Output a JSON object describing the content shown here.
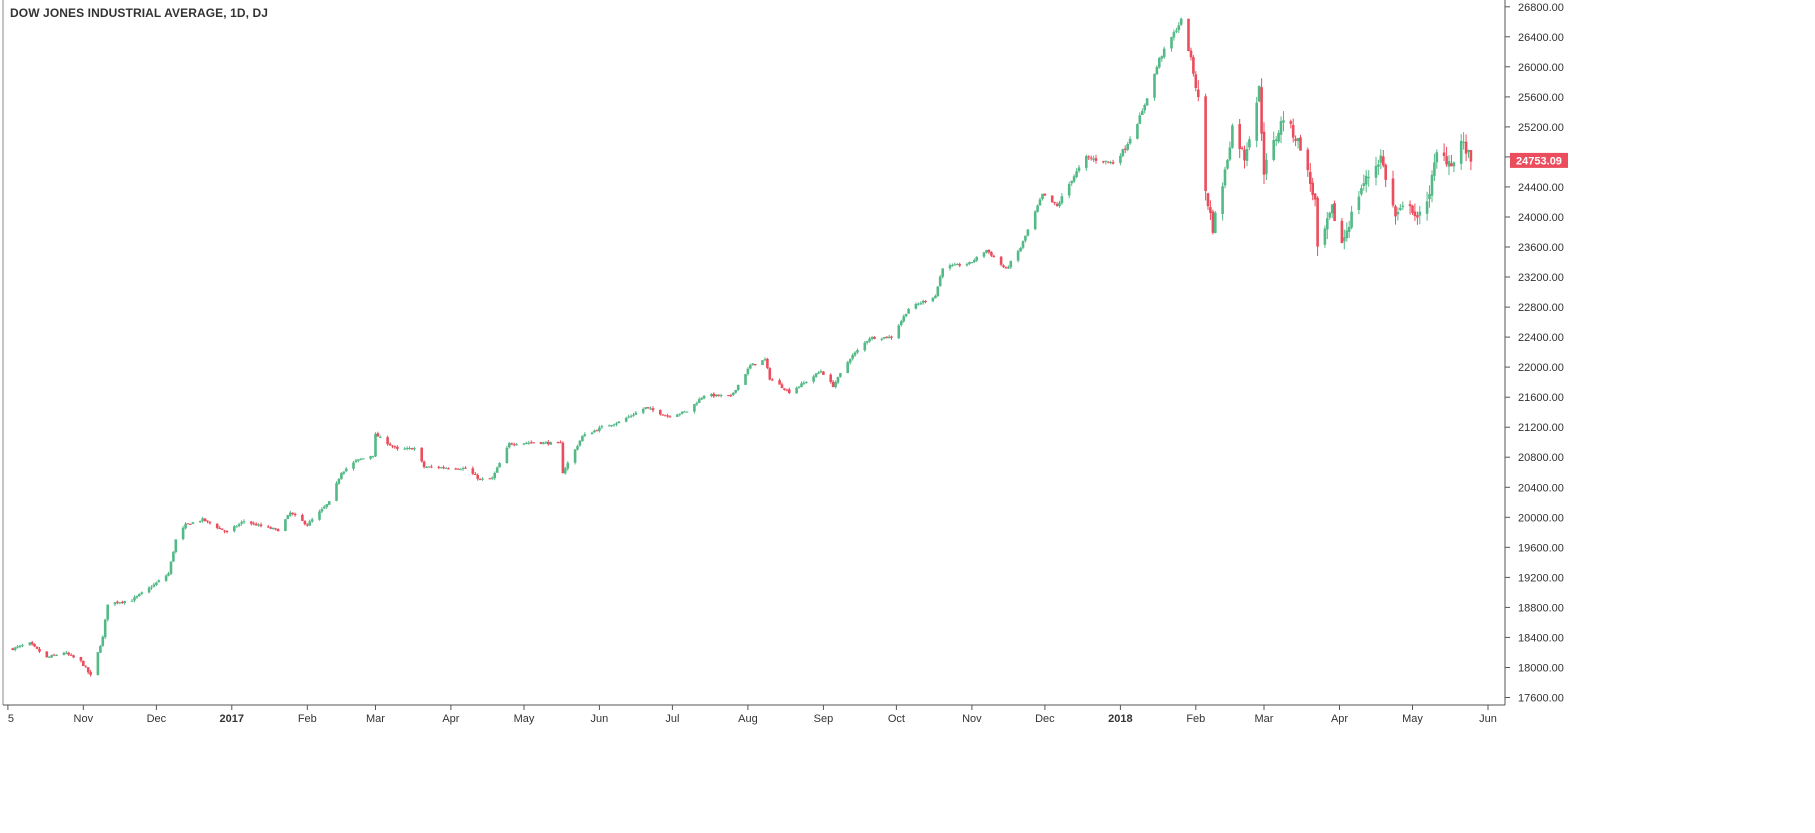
{
  "chart_data": {
    "type": "candlestick",
    "title": "DOW JONES INDUSTRIAL AVERAGE, 1D, DJ",
    "ylim": [
      17500,
      26850
    ],
    "y_ticks": [
      17600,
      18000,
      18400,
      18800,
      19200,
      19600,
      20000,
      20400,
      20800,
      21200,
      21600,
      22000,
      22400,
      22800,
      23200,
      23600,
      24000,
      24400,
      24800,
      25200,
      25600,
      26000,
      26400,
      26800
    ],
    "y_tick_labels": [
      "17600.00",
      "18000.00",
      "18400.00",
      "18800.00",
      "19200.00",
      "19600.00",
      "20000.00",
      "20400.00",
      "20800.00",
      "21200.00",
      "21600.00",
      "22000.00",
      "22400.00",
      "22800.00",
      "23200.00",
      "23600.00",
      "24000.00",
      "24400.00",
      "24800.00",
      "25200.00",
      "25600.00",
      "26000.00",
      "26400.00",
      "26800.00"
    ],
    "x_range": [
      "2016-09-29",
      "2018-06-08"
    ],
    "x_ticks": [
      {
        "date": "2016-10-01",
        "label": "5",
        "bold": false
      },
      {
        "date": "2016-11-01",
        "label": "Nov",
        "bold": false
      },
      {
        "date": "2016-12-01",
        "label": "Dec",
        "bold": false
      },
      {
        "date": "2017-01-01",
        "label": "2017",
        "bold": true
      },
      {
        "date": "2017-02-01",
        "label": "Feb",
        "bold": false
      },
      {
        "date": "2017-03-01",
        "label": "Mar",
        "bold": false
      },
      {
        "date": "2017-04-01",
        "label": "Apr",
        "bold": false
      },
      {
        "date": "2017-05-01",
        "label": "May",
        "bold": false
      },
      {
        "date": "2017-06-01",
        "label": "Jun",
        "bold": false
      },
      {
        "date": "2017-07-01",
        "label": "Jul",
        "bold": false
      },
      {
        "date": "2017-08-01",
        "label": "Aug",
        "bold": false
      },
      {
        "date": "2017-09-01",
        "label": "Sep",
        "bold": false
      },
      {
        "date": "2017-10-01",
        "label": "Oct",
        "bold": false
      },
      {
        "date": "2017-11-01",
        "label": "Nov",
        "bold": false
      },
      {
        "date": "2017-12-01",
        "label": "Dec",
        "bold": false
      },
      {
        "date": "2018-01-01",
        "label": "2018",
        "bold": true
      },
      {
        "date": "2018-02-01",
        "label": "Feb",
        "bold": false
      },
      {
        "date": "2018-03-01",
        "label": "Mar",
        "bold": false
      },
      {
        "date": "2018-04-01",
        "label": "Apr",
        "bold": false
      },
      {
        "date": "2018-05-01",
        "label": "May",
        "bold": false
      },
      {
        "date": "2018-06-01",
        "label": "Jun",
        "bold": false
      }
    ],
    "last_price": 24753.09,
    "last_price_label": "24753.09",
    "colors": {
      "up": "#53b987",
      "down": "#eb4d5c",
      "axis": "#555555",
      "text": "#333333"
    },
    "grid": false,
    "close_points": [
      [
        "2016-10-03",
        18250
      ],
      [
        "2016-10-10",
        18320
      ],
      [
        "2016-10-17",
        18130
      ],
      [
        "2016-10-24",
        18200
      ],
      [
        "2016-10-31",
        18080
      ],
      [
        "2016-11-04",
        17890
      ],
      [
        "2016-11-09",
        18400
      ],
      [
        "2016-11-11",
        18850
      ],
      [
        "2016-11-21",
        18900
      ],
      [
        "2016-11-30",
        19100
      ],
      [
        "2016-12-06",
        19250
      ],
      [
        "2016-12-09",
        19700
      ],
      [
        "2016-12-13",
        19900
      ],
      [
        "2016-12-20",
        19970
      ],
      [
        "2016-12-30",
        19800
      ],
      [
        "2017-01-06",
        19950
      ],
      [
        "2017-01-13",
        19880
      ],
      [
        "2017-01-20",
        19830
      ],
      [
        "2017-01-25",
        20060
      ],
      [
        "2017-02-01",
        19900
      ],
      [
        "2017-02-10",
        20200
      ],
      [
        "2017-02-15",
        20600
      ],
      [
        "2017-02-21",
        20750
      ],
      [
        "2017-02-28",
        20830
      ],
      [
        "2017-03-01",
        21100
      ],
      [
        "2017-03-10",
        20900
      ],
      [
        "2017-03-17",
        20920
      ],
      [
        "2017-03-21",
        20670
      ],
      [
        "2017-03-31",
        20660
      ],
      [
        "2017-04-07",
        20650
      ],
      [
        "2017-04-13",
        20500
      ],
      [
        "2017-04-18",
        20520
      ],
      [
        "2017-04-25",
        20980
      ],
      [
        "2017-05-05",
        21000
      ],
      [
        "2017-05-16",
        20980
      ],
      [
        "2017-05-17",
        20600
      ],
      [
        "2017-05-25",
        21080
      ],
      [
        "2017-06-02",
        21200
      ],
      [
        "2017-06-09",
        21270
      ],
      [
        "2017-06-20",
        21460
      ],
      [
        "2017-06-29",
        21350
      ],
      [
        "2017-07-07",
        21410
      ],
      [
        "2017-07-14",
        21630
      ],
      [
        "2017-07-25",
        21610
      ],
      [
        "2017-08-02",
        22020
      ],
      [
        "2017-08-08",
        22100
      ],
      [
        "2017-08-10",
        21850
      ],
      [
        "2017-08-18",
        21670
      ],
      [
        "2017-08-25",
        21810
      ],
      [
        "2017-08-31",
        21950
      ],
      [
        "2017-09-05",
        21750
      ],
      [
        "2017-09-12",
        22120
      ],
      [
        "2017-09-20",
        22390
      ],
      [
        "2017-09-29",
        22400
      ],
      [
        "2017-10-06",
        22780
      ],
      [
        "2017-10-17",
        22950
      ],
      [
        "2017-10-20",
        23330
      ],
      [
        "2017-10-31",
        23380
      ],
      [
        "2017-11-07",
        23560
      ],
      [
        "2017-11-15",
        23300
      ],
      [
        "2017-11-21",
        23590
      ],
      [
        "2017-11-30",
        24300
      ],
      [
        "2017-12-06",
        24140
      ],
      [
        "2017-12-12",
        24500
      ],
      [
        "2017-12-18",
        24790
      ],
      [
        "2017-12-29",
        24720
      ],
      [
        "2018-01-03",
        24920
      ],
      [
        "2018-01-10",
        25400
      ],
      [
        "2018-01-17",
        26100
      ],
      [
        "2018-01-26",
        26620
      ],
      [
        "2018-01-30",
        26100
      ],
      [
        "2018-02-02",
        25550
      ],
      [
        "2018-02-05",
        24350
      ],
      [
        "2018-02-08",
        23860
      ],
      [
        "2018-02-13",
        24600
      ],
      [
        "2018-02-16",
        25200
      ],
      [
        "2018-02-21",
        24800
      ],
      [
        "2018-02-27",
        25700
      ],
      [
        "2018-03-01",
        24620
      ],
      [
        "2018-03-09",
        25330
      ],
      [
        "2018-03-16",
        24950
      ],
      [
        "2018-03-22",
        24200
      ],
      [
        "2018-03-23",
        23530
      ],
      [
        "2018-03-29",
        24100
      ],
      [
        "2018-04-02",
        23650
      ],
      [
        "2018-04-10",
        24400
      ],
      [
        "2018-04-18",
        24800
      ],
      [
        "2018-04-24",
        24000
      ],
      [
        "2018-04-30",
        24200
      ],
      [
        "2018-05-03",
        23930
      ],
      [
        "2018-05-08",
        24350
      ],
      [
        "2018-05-11",
        24830
      ],
      [
        "2018-05-18",
        24720
      ],
      [
        "2018-05-21",
        25010
      ],
      [
        "2018-05-25",
        24753
      ]
    ]
  }
}
